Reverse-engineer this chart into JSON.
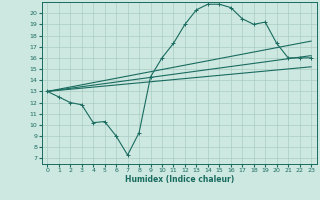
{
  "xlabel": "Humidex (Indice chaleur)",
  "ylabel": "",
  "bg_color": "#cce8e0",
  "grid_color": "#aaccc4",
  "line_color": "#1a6b60",
  "xlim": [
    -0.5,
    23.5
  ],
  "ylim": [
    6.5,
    21.0
  ],
  "xticks": [
    0,
    1,
    2,
    3,
    4,
    5,
    6,
    7,
    8,
    9,
    10,
    11,
    12,
    13,
    14,
    15,
    16,
    17,
    18,
    19,
    20,
    21,
    22,
    23
  ],
  "yticks": [
    7,
    8,
    9,
    10,
    11,
    12,
    13,
    14,
    15,
    16,
    17,
    18,
    19,
    20
  ],
  "line1_x": [
    0,
    1,
    2,
    3,
    4,
    5,
    6,
    7,
    8,
    9,
    10,
    11,
    12,
    13,
    14,
    15,
    16,
    17,
    18,
    19,
    20,
    21,
    22,
    23
  ],
  "line1_y": [
    13.0,
    12.5,
    12.0,
    11.8,
    10.2,
    10.3,
    9.0,
    7.3,
    9.3,
    14.3,
    16.0,
    17.3,
    19.0,
    20.3,
    20.8,
    20.8,
    20.5,
    19.5,
    19.0,
    19.2,
    17.3,
    16.0,
    16.0,
    16.0
  ],
  "line2_x": [
    0,
    23
  ],
  "line2_y": [
    13.0,
    17.5
  ],
  "line3_x": [
    0,
    23
  ],
  "line3_y": [
    13.0,
    16.2
  ],
  "line4_x": [
    0,
    23
  ],
  "line4_y": [
    13.0,
    15.2
  ]
}
